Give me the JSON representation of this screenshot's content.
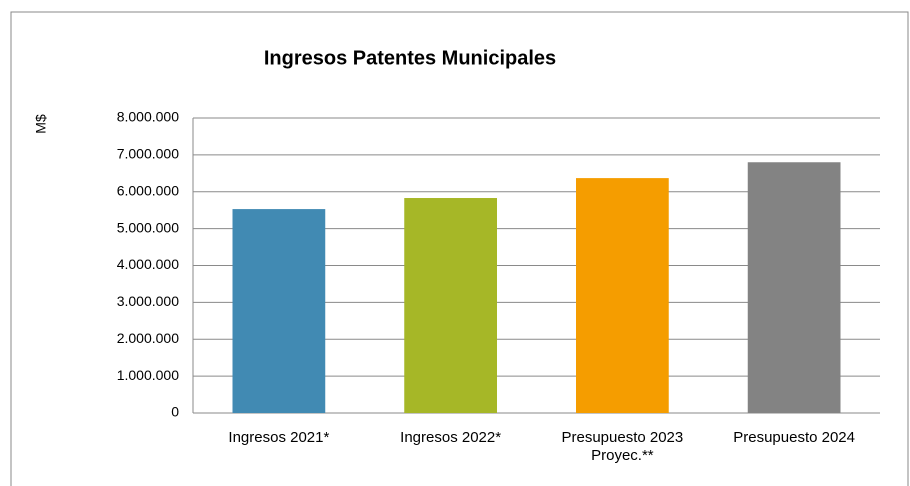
{
  "chart_data": {
    "type": "bar",
    "title": "Ingresos Patentes Municipales",
    "y_label": "M$",
    "categories": [
      "Ingresos 2021*",
      "Ingresos 2022*",
      "Presupuesto 2023 Proyec.**",
      "Presupuesto 2024"
    ],
    "values": [
      5530000,
      5830000,
      6370000,
      6800000
    ],
    "colors": [
      "#418ab3",
      "#a6b727",
      "#f59d00",
      "#838383"
    ],
    "ylim": [
      0,
      8000000
    ],
    "yticks": [
      0,
      {
        "value": 1000000,
        "label": "1.000.000"
      },
      {
        "value": 2000000,
        "label": "2.000.000"
      },
      {
        "value": 3000000,
        "label": "3.000.000"
      },
      {
        "value": 4000000,
        "label": "4.000.000"
      },
      {
        "value": 5000000,
        "label": "5.000.000"
      },
      {
        "value": 6000000,
        "label": "6.000.000"
      },
      {
        "value": 7000000,
        "label": "7.000.000"
      },
      {
        "value": 8000000,
        "label": "8.000.000"
      }
    ],
    "grid": true
  }
}
